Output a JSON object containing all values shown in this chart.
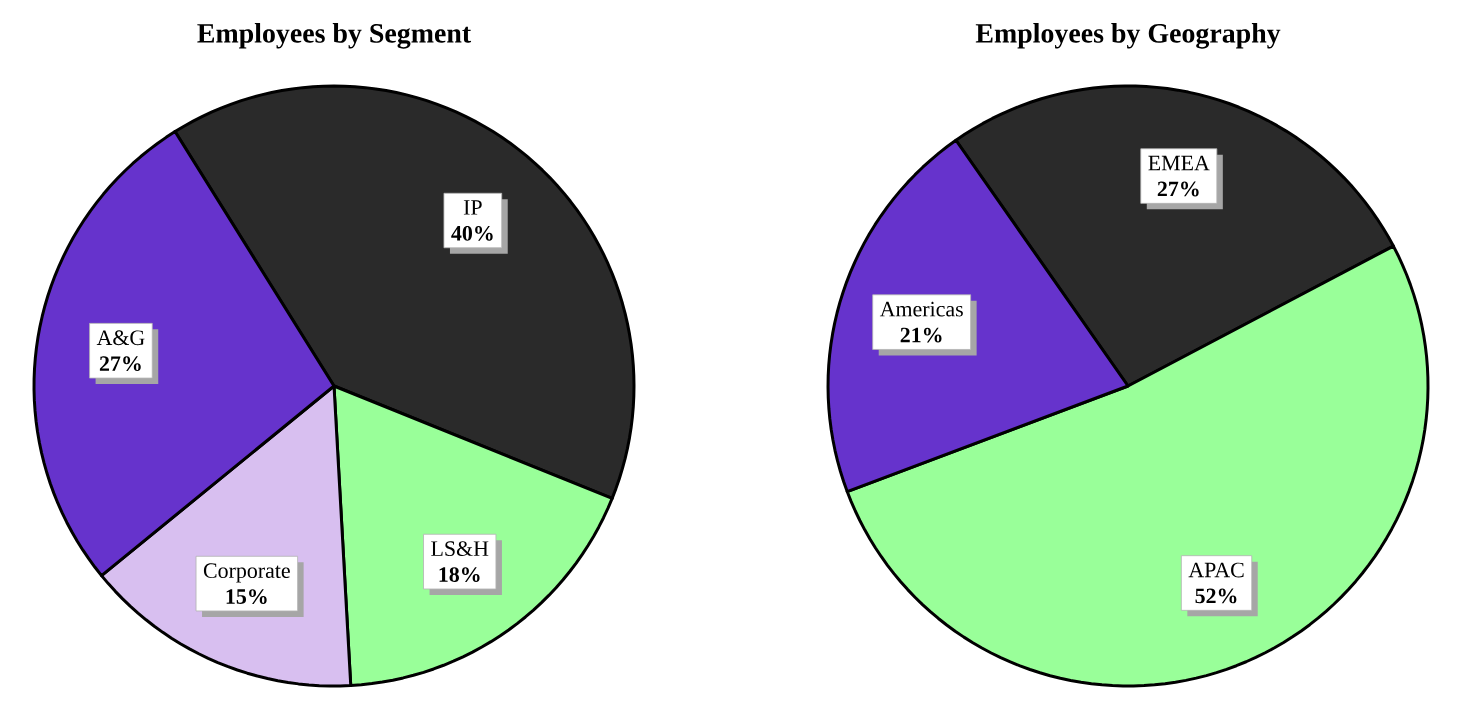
{
  "chart_data": [
    {
      "type": "pie",
      "title": "Employees by Segment",
      "categories": [
        "IP",
        "LS&H",
        "Corporate",
        "A&G"
      ],
      "values": [
        40,
        18,
        15,
        27
      ],
      "colors": [
        "#2a2a2a",
        "#99ff99",
        "#d8bff0",
        "#6633cc"
      ],
      "value_labels": [
        "40%",
        "18%",
        "15%",
        "27%"
      ]
    },
    {
      "type": "pie",
      "title": "Employees by Geography",
      "categories": [
        "EMEA",
        "APAC",
        "Americas"
      ],
      "values": [
        27,
        52,
        21
      ],
      "colors": [
        "#2a2a2a",
        "#99ff99",
        "#6633cc"
      ],
      "value_labels": [
        "27%",
        "52%",
        "21%"
      ]
    }
  ]
}
